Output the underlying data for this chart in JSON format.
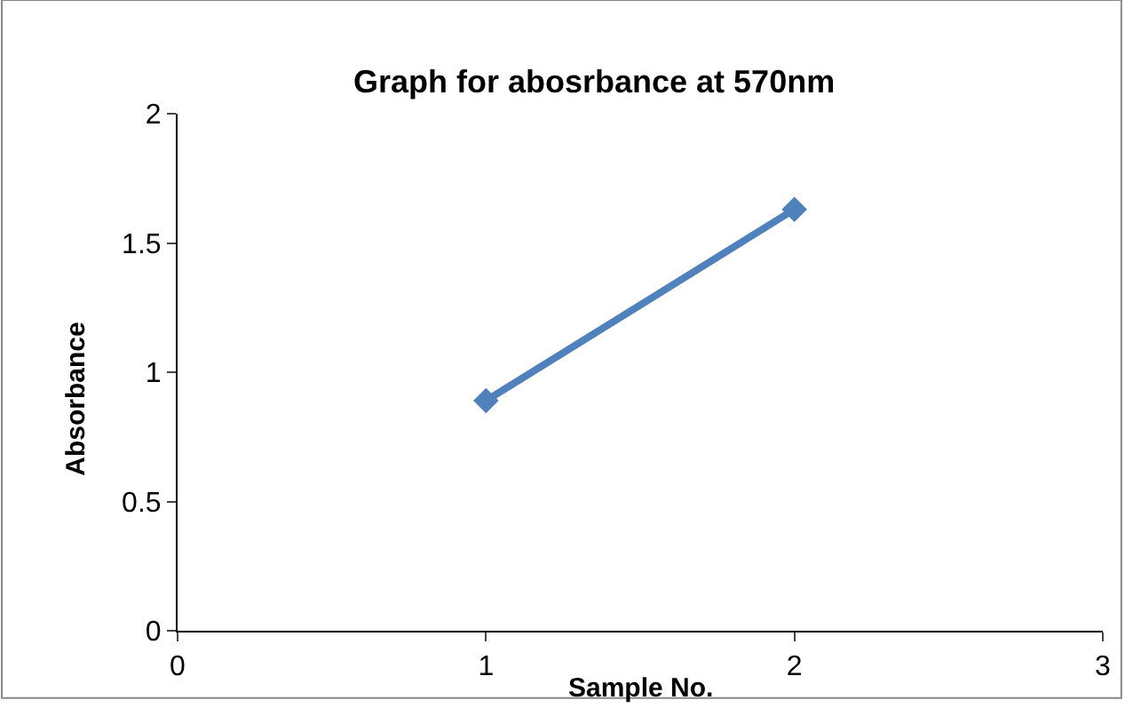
{
  "chart_data": {
    "type": "line",
    "title": "Graph for abosrbance at 570nm",
    "xlabel": "Sample No.",
    "ylabel": "Absorbance",
    "x": [
      1,
      2
    ],
    "series": [
      {
        "color": "#4f81bd",
        "values": [
          0.89,
          1.63
        ]
      }
    ],
    "xlim": [
      0,
      3
    ],
    "xticks": [
      0,
      1,
      2,
      3
    ],
    "ylim": [
      0,
      2
    ],
    "yticks": [
      0,
      0.5,
      1,
      1.5,
      2
    ],
    "marker": "diamond",
    "line_style": "solid"
  }
}
